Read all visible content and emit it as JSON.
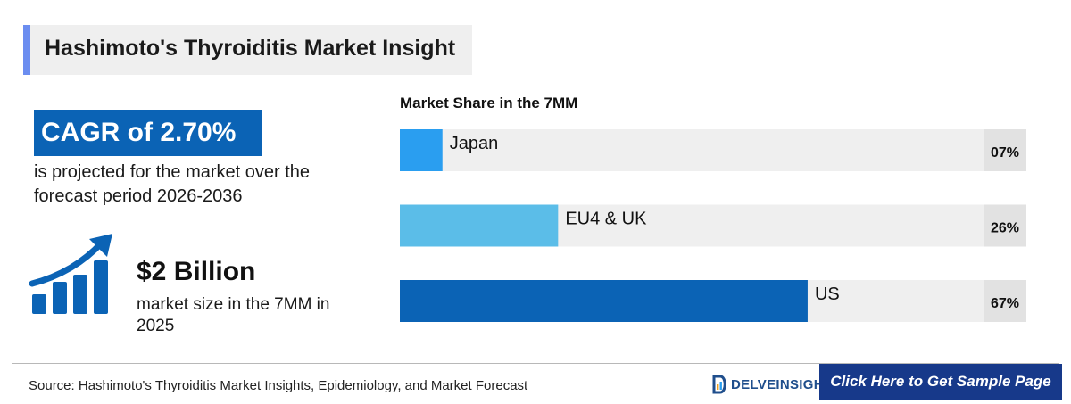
{
  "header": {
    "title": "Hashimoto's Thyroiditis Market Insight",
    "accent_color": "#6b8df0"
  },
  "cagr": {
    "headline": "CAGR of 2.70%",
    "description": "is projected for the market over the forecast period 2026-2036",
    "box_color": "#0b63b5"
  },
  "market_size": {
    "icon": "growth-chart-icon",
    "icon_color": "#0b63b5",
    "value": "$2 Billion",
    "description": "market size in the 7MM in 2025"
  },
  "chart_data": {
    "type": "bar",
    "orientation": "horizontal",
    "title": "Market Share in the 7MM",
    "categories": [
      "Japan",
      "EU4 & UK",
      "US"
    ],
    "values": [
      7,
      26,
      67
    ],
    "value_labels": [
      "07%",
      "26%",
      "67%"
    ],
    "unit": "%",
    "colors": [
      "#2a9ef0",
      "#5bbde8",
      "#0b63b5"
    ],
    "track_color": "#efefef",
    "label_bg_color": "#e2e2e2",
    "xlim": [
      0,
      100
    ],
    "grid": false
  },
  "footer": {
    "source": "Source: Hashimoto's Thyroiditis Market Insights, Epidemiology, and Market Forecast",
    "logo_text": "DELVEINSIGHT",
    "logo_icon": "delveinsight-logo-icon",
    "cta_label": "Click Here to Get Sample Page",
    "cta_color": "#17398a"
  }
}
